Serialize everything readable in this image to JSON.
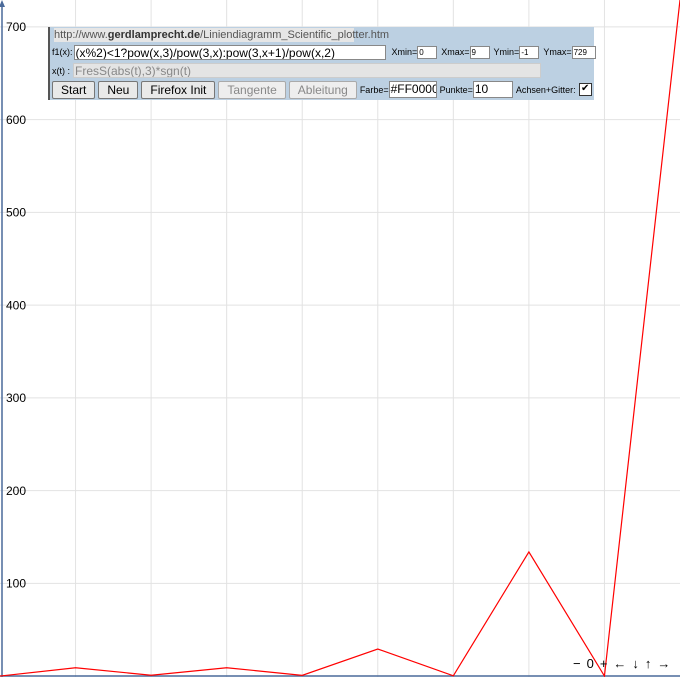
{
  "chart_data": {
    "type": "line",
    "x": [
      0,
      1,
      2,
      3,
      4,
      5,
      6,
      7,
      8,
      9
    ],
    "series": [
      {
        "name": "f1(x)",
        "color": "#ff0000",
        "values": [
          0,
          9,
          0.889,
          9,
          0.79,
          29.16,
          0.296,
          133.9,
          0.078,
          729
        ]
      }
    ],
    "xlim": [
      0,
      9
    ],
    "ylim": [
      -1,
      729
    ],
    "xticks": [
      1,
      2,
      3,
      4,
      5,
      6,
      7,
      8
    ],
    "yticks": [
      100,
      200,
      300,
      400,
      500,
      600,
      700
    ],
    "grid": true
  },
  "panel": {
    "url": {
      "prefix": "http://www.",
      "domain": "gerdlamprecht.de",
      "path": "/Liniendiagramm_Scientific_plotter.htm"
    },
    "f1_label": "f1(x):",
    "f1_value": "(x%2)<1?pow(x,3)/pow(3,x):pow(3,x+1)/pow(x,2)",
    "xmin_label": "Xmin=",
    "xmin_value": "0",
    "xmax_label": "Xmax=",
    "xmax_value": "9",
    "ymin_label": "Ymin=",
    "ymin_value": "-1",
    "ymax_label": "Ymax=",
    "ymax_value": "729",
    "xt_label": "x(t) :",
    "xt_value": "FresS(abs(t),3)*sgn(t)",
    "buttons": [
      "Start",
      "Neu",
      "Firefox Init",
      "Tangente",
      "Ableitung"
    ],
    "farbe_label": "Farbe=",
    "farbe_value": "#FF0000",
    "punkte_label": "Punkte=",
    "punkte_value": "10",
    "achsen_label": "Achsen+Gitter:"
  },
  "nav": [
    "−",
    "0",
    "+",
    "←",
    "↓",
    "↑",
    "→"
  ]
}
